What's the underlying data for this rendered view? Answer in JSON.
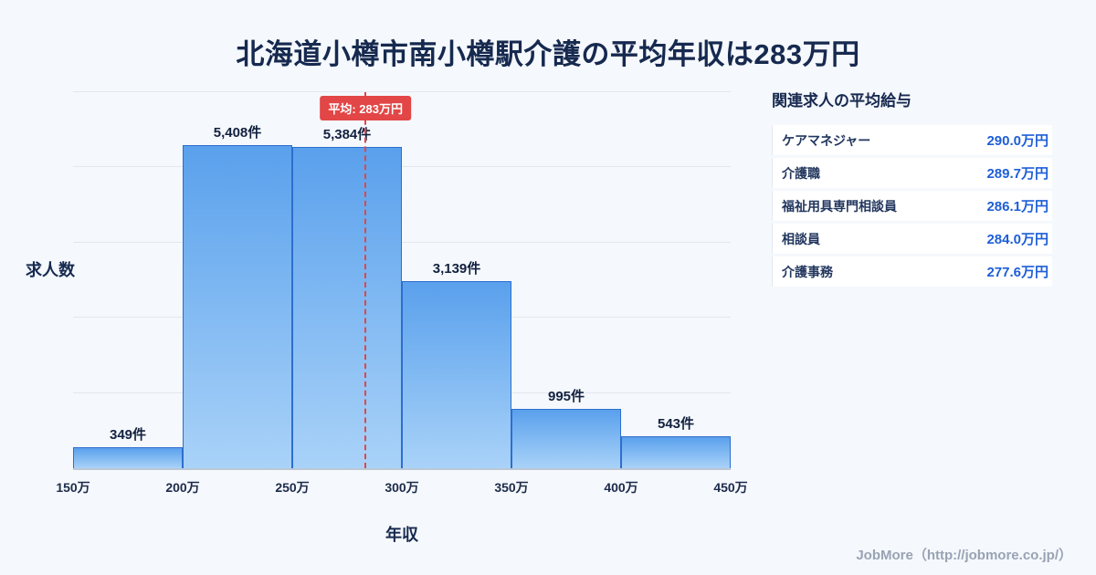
{
  "title": "北海道小樽市南小樽駅介護の平均年収は283万円",
  "chart_data": {
    "type": "bar",
    "title": "北海道小樽市南小樽駅介護の平均年収は283万円",
    "xlabel": "年収",
    "ylabel": "求人数",
    "x_ticks": [
      "150万",
      "200万",
      "250万",
      "300万",
      "350万",
      "400万",
      "450万"
    ],
    "bins": [
      [
        150,
        200
      ],
      [
        200,
        250
      ],
      [
        250,
        300
      ],
      [
        300,
        350
      ],
      [
        350,
        400
      ],
      [
        400,
        450
      ]
    ],
    "values": [
      349,
      5408,
      5384,
      3139,
      995,
      543
    ],
    "labels": [
      "349件",
      "5,408件",
      "5,384件",
      "3,139件",
      "995件",
      "543件"
    ],
    "xlim": [
      150,
      450
    ],
    "ylim": [
      0,
      6300
    ],
    "grid": "horizontal",
    "average_value": 283,
    "average_label": "平均: 283万円"
  },
  "sidebar": {
    "heading": "関連求人の平均給与",
    "rows": [
      {
        "name": "ケアマネジャー",
        "value": "290.0万円"
      },
      {
        "name": "介護職",
        "value": "289.7万円"
      },
      {
        "name": "福祉用具専門相談員",
        "value": "286.1万円"
      },
      {
        "name": "相談員",
        "value": "284.0万円"
      },
      {
        "name": "介護事務",
        "value": "277.6万円"
      }
    ]
  },
  "footer": {
    "credit": "JobMore（http://jobmore.co.jp/）"
  },
  "colors": {
    "background": "#f5f8fc",
    "title": "#16294f",
    "bar_top": "#5aa0ec",
    "bar_bottom": "#a9d2f8",
    "bar_border": "#2d6ecf",
    "average_red": "#e24646",
    "value_blue": "#1e5fd6",
    "credit_gray": "#99a3b4"
  }
}
